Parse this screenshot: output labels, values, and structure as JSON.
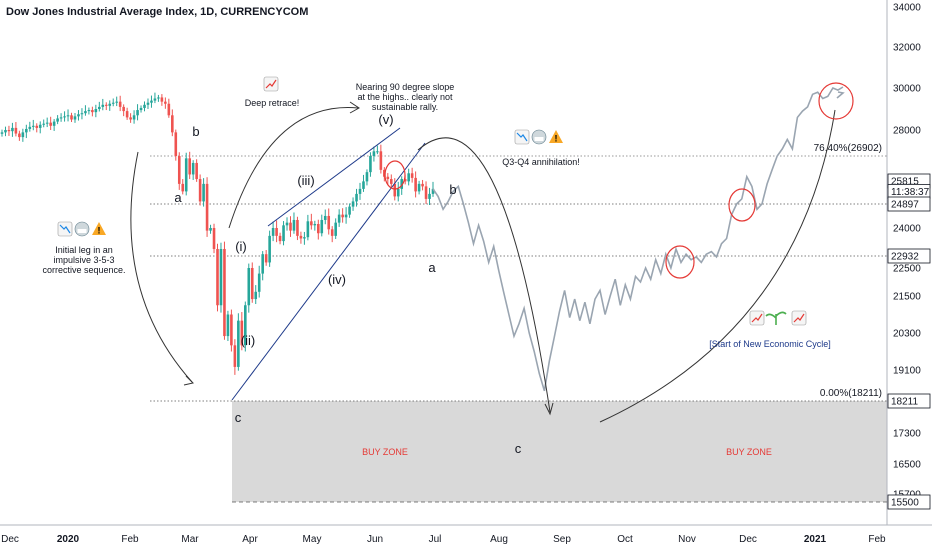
{
  "chart_data": {
    "type": "candlestick",
    "title": "Dow Jones Industrial Average Index, 1D, CURRENCYCOM",
    "ylim": [
      15000,
      34500
    ],
    "y_ticks": [
      {
        "label": "34000",
        "value": 34000
      },
      {
        "label": "32000",
        "value": 32000
      },
      {
        "label": "30000",
        "value": 30000
      },
      {
        "label": "28000",
        "value": 28000
      },
      {
        "label": "24000",
        "value": 24000
      },
      {
        "label": "22500",
        "value": 22500
      },
      {
        "label": "21500",
        "value": 21500
      },
      {
        "label": "20300",
        "value": 20300
      },
      {
        "label": "19100",
        "value": 19100
      },
      {
        "label": "17300",
        "value": 17300
      },
      {
        "label": "16500",
        "value": 16500
      },
      {
        "label": "15700",
        "value": 15700
      }
    ],
    "x_ticks": [
      "Dec",
      "2020",
      "Feb",
      "Mar",
      "Apr",
      "May",
      "Jun",
      "Jul",
      "Aug",
      "Sep",
      "Oct",
      "Nov",
      "Dec",
      "2021",
      "Feb"
    ],
    "levels": [
      {
        "label": "25815",
        "value": 25815,
        "color": "#131722",
        "line": "none"
      },
      {
        "label": "11:38:37",
        "value": 25400,
        "color": "#131722",
        "line": "none"
      },
      {
        "label": "24897",
        "value": 24897,
        "color": "#131722",
        "line": "dotted"
      },
      {
        "label": "22932",
        "value": 22932,
        "color": "#131722",
        "line": "dotted"
      },
      {
        "label": "18211",
        "value": 18211,
        "color": "#131722",
        "line": "dotted"
      },
      {
        "label": "15500",
        "value": 15500,
        "color": "#131722",
        "line": "dashed"
      }
    ],
    "fib_levels": [
      {
        "label": "76.40%(26902)",
        "value": 26902
      },
      {
        "label": "0.00%(18211)",
        "value": 18211
      }
    ],
    "ohlc_close": [
      27900,
      28000,
      27950,
      28100,
      27850,
      27700,
      27900,
      28050,
      28150,
      28200,
      28100,
      28250,
      28300,
      28350,
      28200,
      28400,
      28550,
      28600,
      28650,
      28700,
      28500,
      28650,
      28750,
      28800,
      28900,
      28950,
      28850,
      29000,
      29100,
      29200,
      29150,
      29250,
      29300,
      29350,
      29100,
      28900,
      28600,
      28500,
      28700,
      28950,
      29050,
      29200,
      29300,
      29400,
      29500,
      29550,
      29350,
      29250,
      28700,
      27900,
      26900,
      25700,
      25400,
      26800,
      26100,
      26600,
      25900,
      25000,
      25700,
      23900,
      24000,
      23200,
      21200,
      23200,
      20200,
      20900,
      19900,
      19200,
      20700,
      19900,
      21200,
      22500,
      21400,
      21650,
      22300,
      23000,
      22700,
      23700,
      24000,
      23700,
      23500,
      24100,
      24200,
      23900,
      24300,
      23700,
      23600,
      23650,
      24250,
      24100,
      24150,
      23800,
      24300,
      24450,
      23950,
      23700,
      24200,
      24500,
      24400,
      24500,
      24800,
      25000,
      25300,
      25500,
      25800,
      26200,
      26900,
      27100,
      27100,
      26300,
      26000,
      25900,
      25700,
      25200,
      25500,
      25900,
      25800,
      26150,
      25950,
      25400,
      25700,
      25600,
      25100,
      25300,
      25500
    ],
    "projection": [
      25500,
      25200,
      24700,
      25000,
      25400,
      25600,
      24900,
      24200,
      23400,
      24100,
      23500,
      22700,
      23300,
      22400,
      21600,
      20900,
      20200,
      20600,
      21100,
      20300,
      19700,
      19000,
      18500,
      19400,
      20200,
      21000,
      21700,
      20800,
      21400,
      20700,
      21300,
      20600,
      21400,
      21700,
      20900,
      21500,
      22100,
      21200,
      21900,
      21400,
      22200,
      22000,
      22500,
      22100,
      22800,
      22300,
      23000,
      22500,
      23200,
      22700,
      23000,
      22800,
      22900,
      22700,
      23000,
      23100,
      22900,
      23400,
      23600,
      24500,
      24900,
      25100,
      26000,
      25600,
      24700,
      24900,
      25700,
      26300,
      26900,
      27200,
      27600,
      27200,
      28600,
      28900,
      29100,
      29700,
      29800,
      29500,
      29600,
      30000,
      29900,
      30050
    ],
    "annotations": [
      {
        "text": "b",
        "kind": "wave"
      },
      {
        "text": "a",
        "kind": "wave"
      },
      {
        "text": "c",
        "kind": "wave"
      },
      {
        "text": "(i)",
        "kind": "wave"
      },
      {
        "text": "(ii)",
        "kind": "wave"
      },
      {
        "text": "(iii)",
        "kind": "wave"
      },
      {
        "text": "(iv)",
        "kind": "wave"
      },
      {
        "text": "(v)",
        "kind": "wave"
      },
      {
        "text": "b",
        "kind": "wave"
      },
      {
        "text": "a",
        "kind": "wave"
      },
      {
        "text": "c",
        "kind": "wave"
      },
      {
        "text": "Deep retrace!",
        "kind": "note"
      },
      {
        "text": "Nearing 90 degree slope",
        "kind": "note"
      },
      {
        "text": "at the highs.. clearly not",
        "kind": "note"
      },
      {
        "text": "sustainable rally.",
        "kind": "note"
      },
      {
        "text": "Q3-Q4 annihilation!",
        "kind": "note"
      },
      {
        "text": "Initial leg in an",
        "kind": "note"
      },
      {
        "text": "impulsive 3-5-3",
        "kind": "note"
      },
      {
        "text": "corrective sequence.",
        "kind": "note"
      },
      {
        "text": "[Start of New Economic Cycle]",
        "kind": "note"
      },
      {
        "text": "BUY ZONE",
        "kind": "zone"
      },
      {
        "text": "BUY ZONE",
        "kind": "zone"
      }
    ],
    "colors": {
      "up": "#26a69a",
      "down": "#ef5350",
      "projection": "#9aa5b1",
      "circle": "#e53935",
      "zone": "#d9d9d9",
      "buy_zone_text": "#e53935",
      "note_blue": "#1e3a8a"
    }
  }
}
